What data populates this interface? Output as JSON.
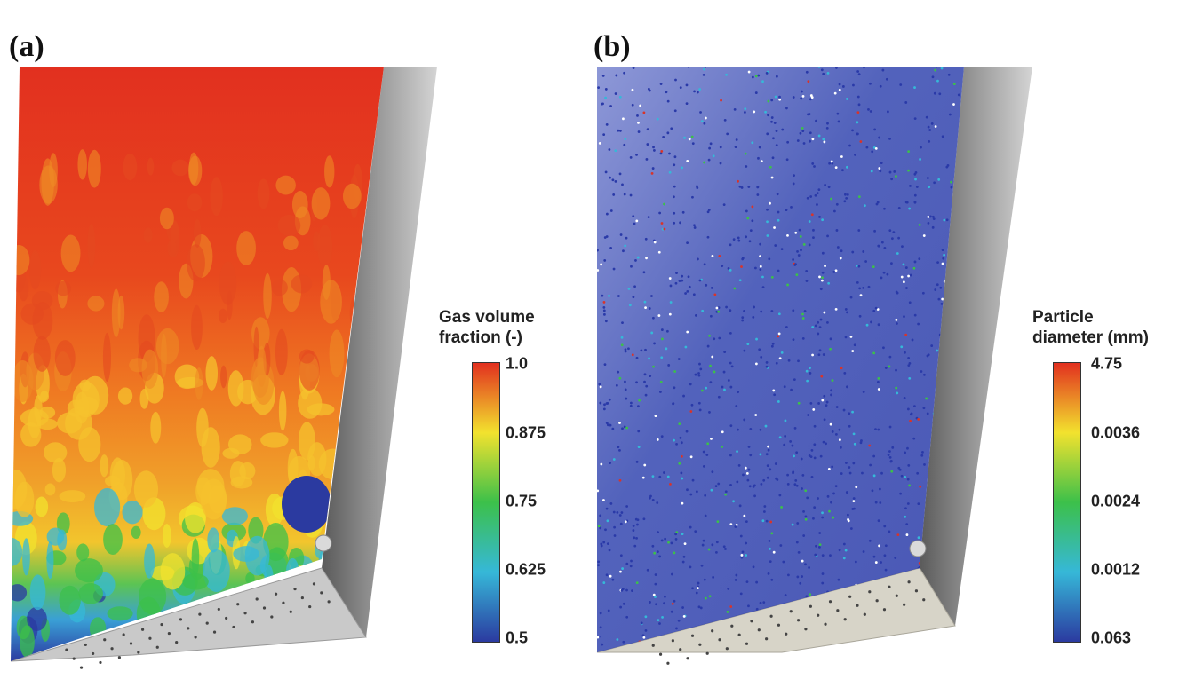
{
  "panels": [
    {
      "label": "(a)",
      "legend": {
        "title_line1": "Gas volume",
        "title_line2": "fraction (-)",
        "ticks": [
          "1.0",
          "0.875",
          "0.75",
          "0.625",
          "0.5"
        ]
      }
    },
    {
      "label": "(b)",
      "legend": {
        "title_line1": "Particle",
        "title_line2": "diameter (mm)",
        "ticks": [
          "4.75",
          "0.0036",
          "0.0024",
          "0.0012",
          "0.063"
        ]
      }
    }
  ],
  "colormap": [
    "#2b3aa0",
    "#36b8d8",
    "#3cc04a",
    "#f2e22e",
    "#e2301f"
  ]
}
